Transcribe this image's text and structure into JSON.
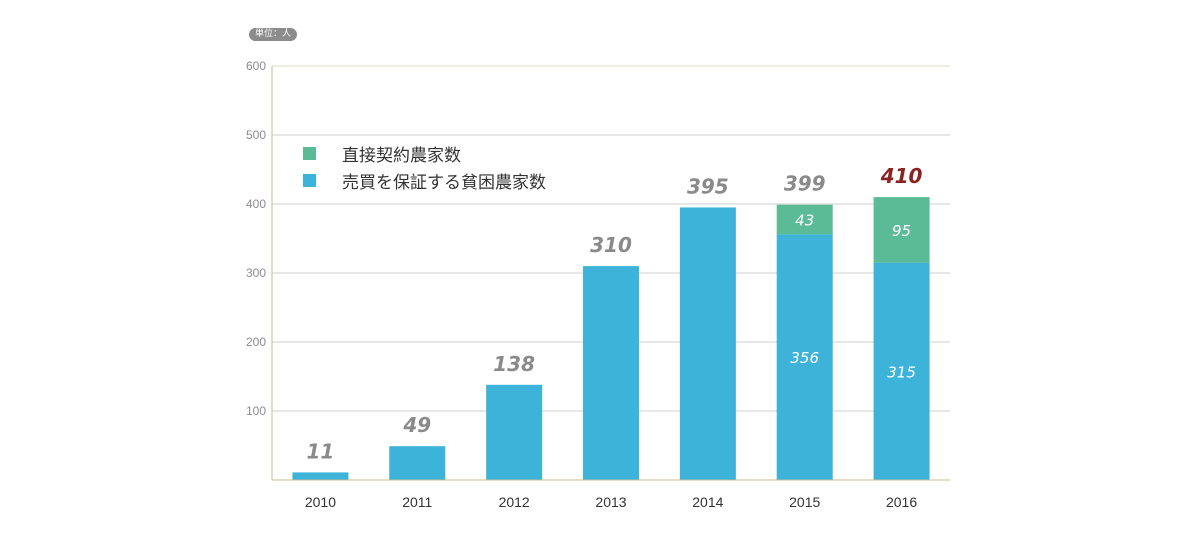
{
  "unit_label": "単位：人",
  "colors": {
    "direct": "#5bbb97",
    "guarantee": "#3db3da",
    "total_label": "#8a8a8a",
    "total_highlight": "#8b2323",
    "axis": "#c8b88a",
    "grid": "#cfcfcf"
  },
  "chart_data": {
    "type": "bar",
    "stacked": true,
    "categories": [
      "2010",
      "2011",
      "2012",
      "2013",
      "2014",
      "2015",
      "2016"
    ],
    "series": [
      {
        "name": "売買を保証する貧困農家数",
        "values": [
          11,
          49,
          138,
          310,
          395,
          356,
          315
        ]
      },
      {
        "name": "直接契約農家数",
        "values": [
          0,
          0,
          0,
          0,
          0,
          43,
          95
        ]
      }
    ],
    "totals": [
      11,
      49,
      138,
      310,
      395,
      399,
      410
    ],
    "highlight_index": 6,
    "inner_labels": {
      "guarantee": [
        "",
        "",
        "",
        "",
        "",
        "356",
        "315"
      ],
      "direct": [
        "",
        "",
        "",
        "",
        "",
        "43",
        "95"
      ]
    },
    "ylim": [
      0,
      600
    ],
    "yticks": [
      100,
      200,
      300,
      400,
      500,
      600
    ],
    "grid": true,
    "legend": [
      "直接契約農家数",
      "売買を保証する貧困農家数"
    ],
    "legend_position": "top-left"
  }
}
